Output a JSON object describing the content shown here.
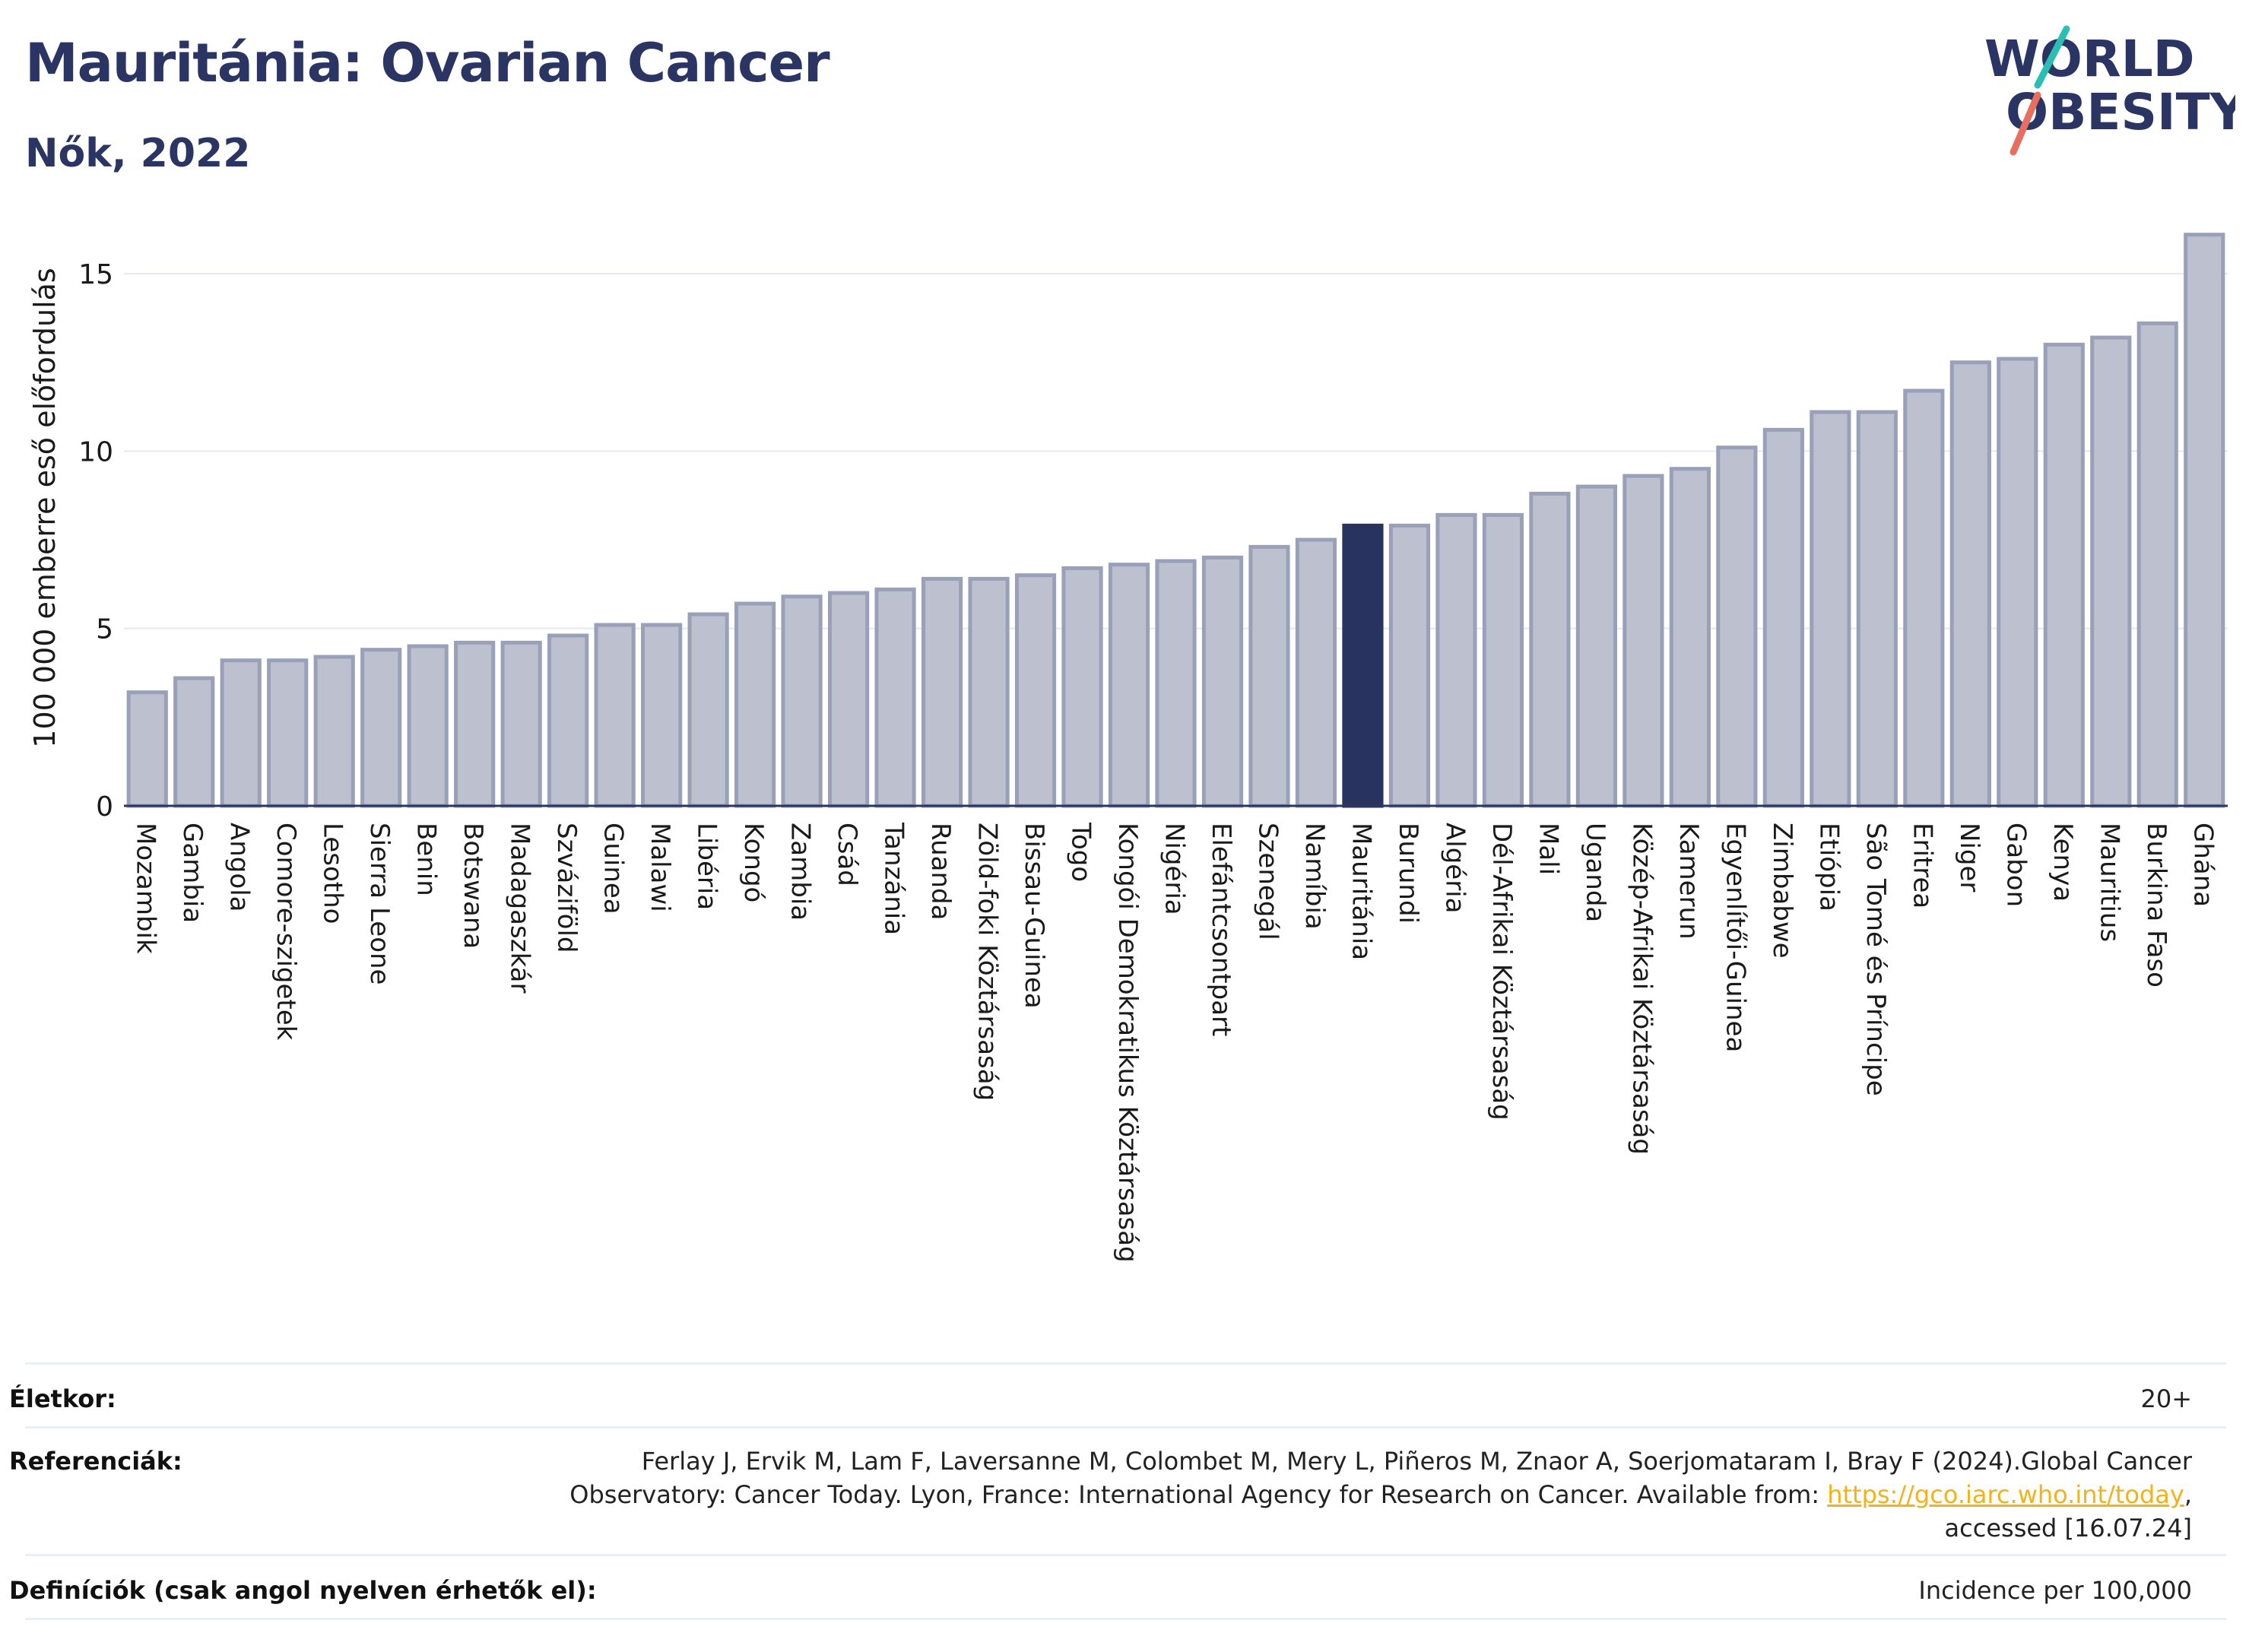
{
  "header": {
    "title": "Mauritánia: Ovarian Cancer",
    "subtitle": "Nők, 2022",
    "logo_line1": "WORLD",
    "logo_line2": "OBESITY"
  },
  "chart_data": {
    "type": "bar",
    "title": "Mauritánia: Ovarian Cancer",
    "subtitle": "Nők, 2022",
    "xlabel": "",
    "ylabel": "100 000 emberre eső előfordulás",
    "ylim": [
      0,
      16.5
    ],
    "yticks": [
      0,
      5,
      10,
      15
    ],
    "highlight": "Mauritánia",
    "colors": {
      "bar": "#bcc0cf",
      "bar_edge": "#9aa0b8",
      "highlight": "#28345f",
      "grid": "#e6e8f0",
      "axis": "#2b3563"
    },
    "categories": [
      "Mozambik",
      "Gambia",
      "Angola",
      "Comore-szigetek",
      "Lesotho",
      "Sierra Leone",
      "Benin",
      "Botswana",
      "Madagaszkár",
      "Szváziföld",
      "Guinea",
      "Malawi",
      "Libéria",
      "Kongó",
      "Zambia",
      "Csád",
      "Tanzánia",
      "Ruanda",
      "Zöld-foki Köztársaság",
      "Bissau-Guinea",
      "Togo",
      "Kongói Demokratikus Köztársaság",
      "Nigéria",
      "Elefántcsontpart",
      "Szenegál",
      "Namíbia",
      "Mauritánia",
      "Burundi",
      "Algéria",
      "Dél-Afrikai Köztársaság",
      "Mali",
      "Uganda",
      "Közép-Afrikai Köztársaság",
      "Kamerun",
      "Egyenlítői-Guinea",
      "Zimbabwe",
      "Etiópia",
      "São Tomé és Príncipe",
      "Eritrea",
      "Niger",
      "Gabon",
      "Kenya",
      "Mauritius",
      "Burkina Faso",
      "Ghána"
    ],
    "values": [
      3.2,
      3.6,
      4.1,
      4.1,
      4.2,
      4.4,
      4.5,
      4.6,
      4.6,
      4.8,
      5.1,
      5.1,
      5.4,
      5.7,
      5.9,
      6.0,
      6.1,
      6.4,
      6.4,
      6.5,
      6.7,
      6.8,
      6.9,
      7.0,
      7.3,
      7.5,
      7.9,
      7.9,
      8.2,
      8.2,
      8.8,
      9.0,
      9.3,
      9.5,
      10.1,
      10.6,
      11.1,
      11.1,
      11.7,
      12.5,
      12.6,
      13.0,
      13.2,
      13.6,
      16.1
    ]
  },
  "footer": {
    "age_label": "Életkor:",
    "age_value": "20+",
    "ref_label": "Referenciák:",
    "ref_line1": "Ferlay J, Ervik M, Lam F, Laversanne M, Colombet M, Mery L, Piñeros M, Znaor A, Soerjomataram I, Bray F (2024).Global Cancer",
    "ref_line2": "Observatory: Cancer Today. Lyon, France: International Agency for Research on Cancer. Available from: ",
    "ref_link": "https://gco.iarc.who.int/today",
    "ref_line2_end": ",",
    "ref_line3": "accessed [16.07.24]",
    "def_label": "Definíciók (csak angol nyelven érhetők el):",
    "def_value": "Incidence per 100,000"
  }
}
